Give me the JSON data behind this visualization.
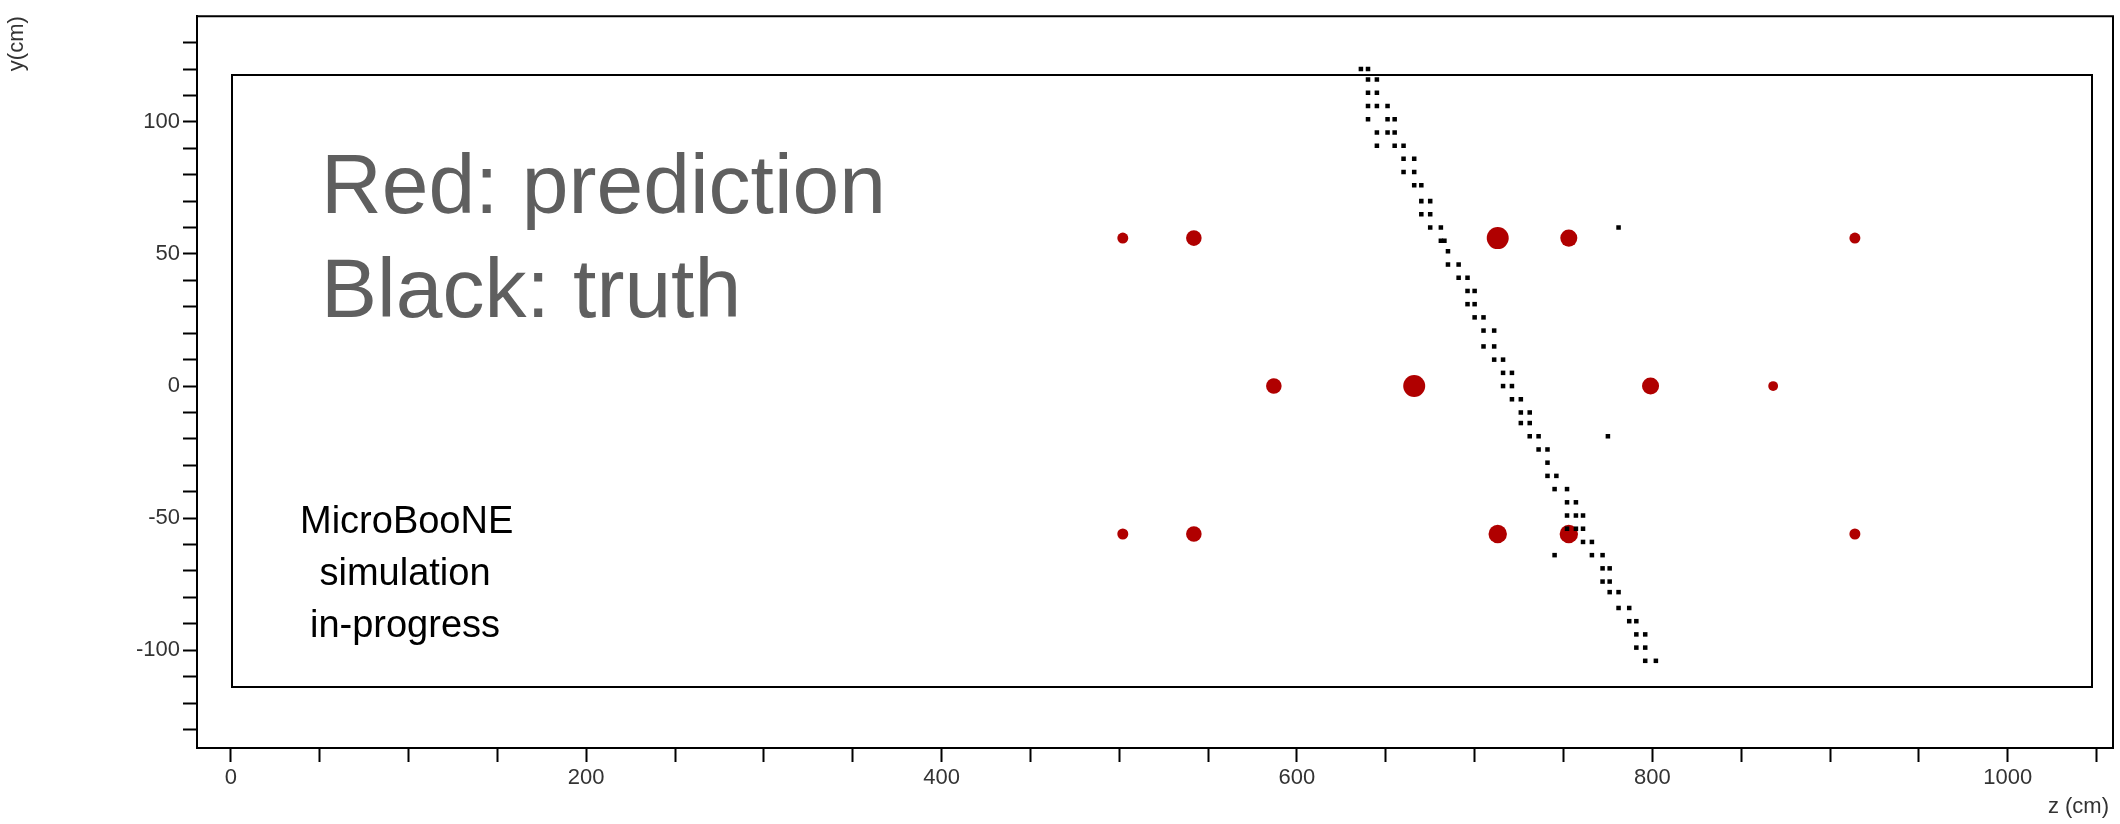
{
  "chart_data": {
    "type": "scatter",
    "xlabel": "z (cm)",
    "ylabel": "y(cm)",
    "marker": "square",
    "grid": false,
    "legend": false,
    "annotations": [
      "Red: prediction\nBlack: truth",
      "MicroBooNE\nsimulation\nin-progress"
    ],
    "xlim": [
      -19,
      1057
    ],
    "ylim": [
      -137,
      140
    ],
    "xticks": [
      0,
      {
        "value": 50,
        "label": null
      },
      {
        "value": 100,
        "label": null
      },
      {
        "value": 150,
        "label": null
      },
      200,
      {
        "value": 250,
        "label": null
      },
      {
        "value": 300,
        "label": null
      },
      {
        "value": 350,
        "label": null
      },
      400,
      {
        "value": 450,
        "label": null
      },
      {
        "value": 500,
        "label": null
      },
      {
        "value": 550,
        "label": null
      },
      600,
      {
        "value": 650,
        "label": null
      },
      {
        "value": 700,
        "label": null
      },
      {
        "value": 750,
        "label": null
      },
      800,
      {
        "value": 850,
        "label": null
      },
      {
        "value": 900,
        "label": null
      },
      {
        "value": 950,
        "label": null
      },
      1000,
      {
        "value": 1050,
        "label": null
      }
    ],
    "yticks": [
      {
        "value": -130,
        "label": null
      },
      {
        "value": -120,
        "label": null
      },
      {
        "value": -110,
        "label": null
      },
      -100,
      {
        "value": -90,
        "label": null
      },
      {
        "value": -80,
        "label": null
      },
      {
        "value": -70,
        "label": null
      },
      {
        "value": -60,
        "label": null
      },
      -50,
      {
        "value": -40,
        "label": null
      },
      {
        "value": -30,
        "label": null
      },
      {
        "value": -20,
        "label": null
      },
      {
        "value": -10,
        "label": null
      },
      0,
      {
        "value": 10,
        "label": null
      },
      {
        "value": 20,
        "label": null
      },
      {
        "value": 30,
        "label": null
      },
      {
        "value": 40,
        "label": null
      },
      50,
      {
        "value": 60,
        "label": null
      },
      {
        "value": 70,
        "label": null
      },
      {
        "value": 80,
        "label": null
      },
      {
        "value": 90,
        "label": null
      },
      100,
      {
        "value": 110,
        "label": null
      },
      {
        "value": 120,
        "label": null
      },
      {
        "value": 130,
        "label": null
      }
    ],
    "series": [
      {
        "color": "#000000",
        "x": [
          636,
          640,
          640,
          645,
          640,
          645,
          640,
          645,
          651,
          640,
          651,
          655,
          645,
          651,
          655,
          645,
          655,
          660,
          660,
          666,
          660,
          666,
          666,
          670,
          670,
          675,
          670,
          675,
          675,
          681,
          781,
          681,
          683,
          685,
          685,
          691,
          691,
          696,
          696,
          700,
          696,
          700,
          700,
          705,
          705,
          711,
          705,
          711,
          711,
          716,
          716,
          721,
          716,
          721,
          721,
          726,
          726,
          731,
          726,
          731,
          731,
          736,
          775,
          736,
          741,
          741,
          741,
          746,
          745,
          752,
          752,
          757,
          752,
          757,
          761,
          752,
          757,
          761,
          761,
          766,
          766,
          772,
          745,
          772,
          776,
          772,
          776,
          776,
          781,
          781,
          787,
          787,
          791,
          791,
          796,
          791,
          796,
          796,
          802
        ],
        "values": [
          120,
          120,
          116,
          116,
          111,
          111,
          106,
          106,
          106,
          101,
          101,
          101,
          96,
          96,
          96,
          91,
          91,
          91,
          86,
          86,
          81,
          81,
          76,
          76,
          70,
          70,
          65,
          65,
          60,
          60,
          60,
          55,
          55,
          51,
          46,
          46,
          41,
          41,
          36,
          36,
          31,
          31,
          26,
          26,
          21,
          21,
          15,
          15,
          10,
          10,
          5,
          5,
          0,
          0,
          -5,
          -5,
          -10,
          -10,
          -14,
          -14,
          -19,
          -19,
          -19,
          -24,
          -24,
          -29,
          -34,
          -34,
          -39,
          -39,
          -44,
          -44,
          -49,
          -49,
          -49,
          -54,
          -54,
          -54,
          -59,
          -59,
          -64,
          -64,
          -64,
          -69,
          -69,
          -74,
          -74,
          -78,
          -78,
          -84,
          -84,
          -89,
          -89,
          -94,
          -94,
          -99,
          -99,
          -104,
          -104
        ]
      },
      {
        "type": "bubble",
        "marker": "circle",
        "color": "#b00000",
        "x": [
          502,
          542,
          713,
          753,
          914,
          587,
          666,
          799,
          868,
          502,
          542,
          713,
          753,
          914
        ],
        "values": [
          56,
          56,
          56,
          56,
          56,
          0,
          0,
          0,
          0,
          -56,
          -56,
          -56,
          -56,
          -56
        ],
        "sizes": [
          0.25,
          0.5,
          1,
          0.6,
          0.25,
          0.5,
          1,
          0.6,
          0.2,
          0.25,
          0.5,
          0.7,
          0.7,
          0.25
        ]
      }
    ]
  }
}
